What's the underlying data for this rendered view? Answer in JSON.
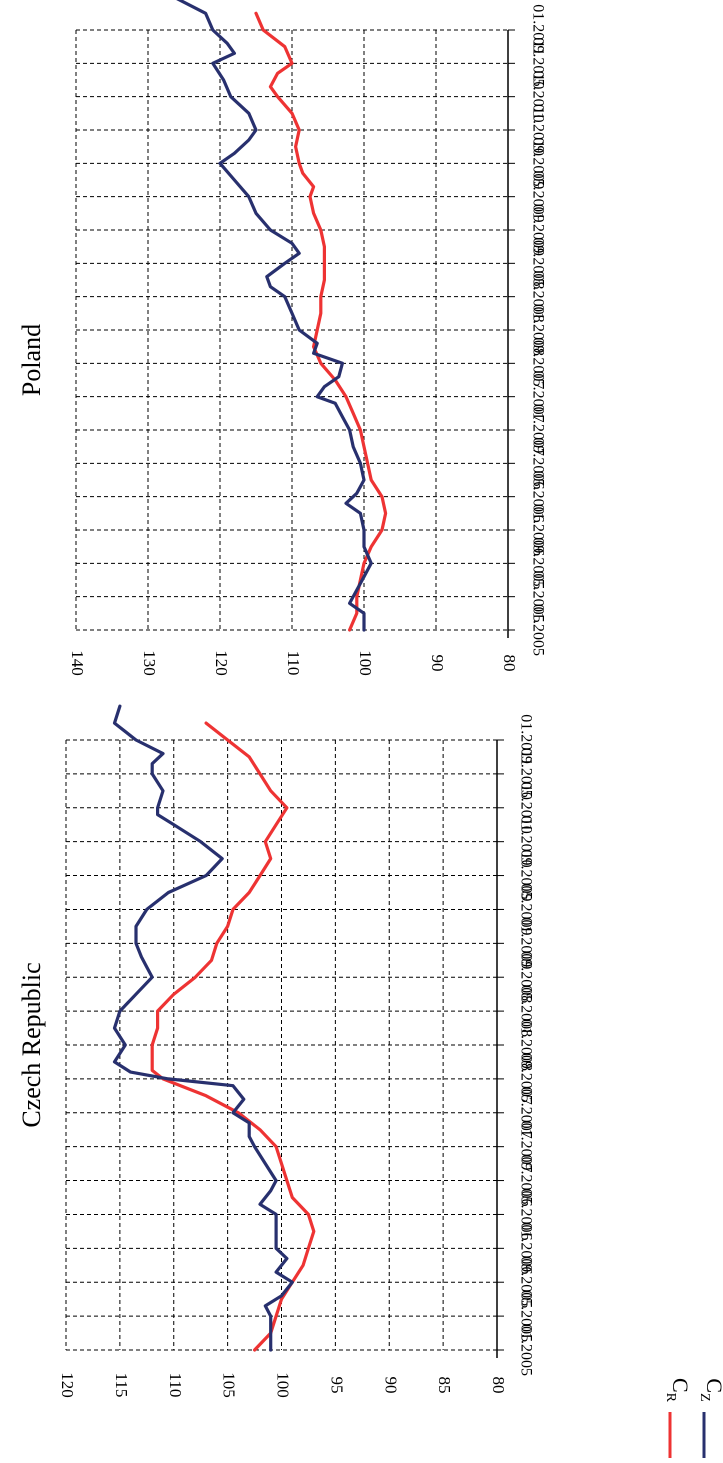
{
  "colors": {
    "cr": "#ee3333",
    "cz": "#28306e",
    "grid": "#000000"
  },
  "legend": [
    {
      "label": "C",
      "sub": "R",
      "color": "#ee3333"
    },
    {
      "label": "C",
      "sub": "Z",
      "color": "#28306e"
    }
  ],
  "chart_data": [
    {
      "type": "line",
      "title": "Czech Republic",
      "orientation": "rotated-90-clockwise",
      "x": [
        "01.2005",
        "05.2005",
        "09.2005",
        "01.2006",
        "05.2006",
        "09.2006",
        "01.2007",
        "05.2007",
        "09.2007",
        "01.2008",
        "05.2008",
        "09.2008",
        "01.2009",
        "05.2009",
        "09.2009",
        "01.2010",
        "05.2010",
        "09.2010",
        "01.2011"
      ],
      "ylim": [
        80,
        120
      ],
      "yticks": [
        80,
        85,
        90,
        95,
        100,
        105,
        110,
        115,
        120
      ],
      "grid": true,
      "series": [
        {
          "key": "cr",
          "name": "C_R",
          "values": [
            [
              0,
              102.5
            ],
            [
              0.5,
              101.0
            ],
            [
              1,
              100.5
            ],
            [
              1.5,
              100.0
            ],
            [
              2,
              99.0
            ],
            [
              2.5,
              98.0
            ],
            [
              3,
              97.5
            ],
            [
              3.5,
              97.0
            ],
            [
              4,
              97.5
            ],
            [
              4.5,
              99.0
            ],
            [
              5,
              99.5
            ],
            [
              5.5,
              100.0
            ],
            [
              6,
              100.5
            ],
            [
              6.5,
              102.0
            ],
            [
              7,
              104.0
            ],
            [
              7.5,
              107.0
            ],
            [
              8,
              111.0
            ],
            [
              8.25,
              112.0
            ],
            [
              8.5,
              112.0
            ],
            [
              9,
              112.0
            ],
            [
              9.5,
              111.5
            ],
            [
              10,
              111.5
            ],
            [
              10.5,
              110.0
            ],
            [
              11,
              108.0
            ],
            [
              11.5,
              106.5
            ],
            [
              12,
              106.0
            ],
            [
              12.5,
              105.0
            ],
            [
              13,
              104.5
            ],
            [
              13.5,
              103.0
            ],
            [
              14,
              102.0
            ],
            [
              14.5,
              101.0
            ],
            [
              15,
              101.5
            ],
            [
              15.5,
              100.5
            ],
            [
              16,
              99.5
            ],
            [
              16.5,
              101.0
            ],
            [
              17,
              102.0
            ],
            [
              17.5,
              103.0
            ],
            [
              18,
              105.0
            ],
            [
              18.5,
              107.0
            ]
          ]
        },
        {
          "key": "cz",
          "name": "C_Z",
          "values": [
            [
              0,
              101.0
            ],
            [
              0.5,
              101.0
            ],
            [
              1,
              101.0
            ],
            [
              1.3,
              101.5
            ],
            [
              1.6,
              100.0
            ],
            [
              2,
              99.0
            ],
            [
              2.3,
              100.5
            ],
            [
              2.7,
              99.5
            ],
            [
              3,
              100.5
            ],
            [
              3.5,
              100.5
            ],
            [
              4,
              100.5
            ],
            [
              4.3,
              102.0
            ],
            [
              4.7,
              101.0
            ],
            [
              5,
              100.5
            ],
            [
              5.5,
              101.5
            ],
            [
              6,
              102.5
            ],
            [
              6.3,
              103.0
            ],
            [
              6.7,
              103.0
            ],
            [
              7,
              104.5
            ],
            [
              7.4,
              103.5
            ],
            [
              7.8,
              104.5
            ],
            [
              8,
              110.5
            ],
            [
              8.2,
              114.0
            ],
            [
              8.5,
              115.5
            ],
            [
              9,
              114.5
            ],
            [
              9.5,
              115.5
            ],
            [
              10,
              115.0
            ],
            [
              10.5,
              113.5
            ],
            [
              11,
              112.0
            ],
            [
              11.3,
              112.5
            ],
            [
              11.6,
              113.0
            ],
            [
              12,
              113.5
            ],
            [
              12.5,
              113.5
            ],
            [
              13,
              112.5
            ],
            [
              13.5,
              110.5
            ],
            [
              14,
              107.0
            ],
            [
              14.5,
              105.5
            ],
            [
              15,
              107.5
            ],
            [
              15.5,
              110.0
            ],
            [
              15.8,
              111.5
            ],
            [
              16,
              111.5
            ],
            [
              16.5,
              111.0
            ],
            [
              17,
              112.0
            ],
            [
              17.3,
              112.0
            ],
            [
              17.6,
              111.0
            ],
            [
              18,
              113.5
            ],
            [
              18.5,
              115.5
            ],
            [
              19,
              115.0
            ]
          ]
        }
      ]
    },
    {
      "type": "line",
      "title": "Poland",
      "orientation": "rotated-90-clockwise",
      "x": [
        "01.2005",
        "05.2005",
        "09.2005",
        "01.2006",
        "05.2006",
        "09.2006",
        "01.2007",
        "05.2007",
        "09.2007",
        "01.2008",
        "05.2008",
        "09.2008",
        "01.2009",
        "05.2009",
        "09.2009",
        "01.2010",
        "05.2010",
        "09.2010",
        "01.2011"
      ],
      "ylim": [
        80,
        140
      ],
      "yticks": [
        80,
        90,
        100,
        110,
        120,
        130,
        140
      ],
      "grid": true,
      "series": [
        {
          "key": "cr",
          "name": "C_R",
          "values": [
            [
              0,
              102.0
            ],
            [
              0.5,
              101.0
            ],
            [
              1,
              101.0
            ],
            [
              1.5,
              100.5
            ],
            [
              2,
              100.0
            ],
            [
              2.5,
              99.0
            ],
            [
              3,
              97.5
            ],
            [
              3.5,
              97.0
            ],
            [
              4,
              97.5
            ],
            [
              4.5,
              99.0
            ],
            [
              5,
              99.5
            ],
            [
              5.5,
              100.0
            ],
            [
              6,
              100.5
            ],
            [
              6.5,
              101.5
            ],
            [
              7,
              102.5
            ],
            [
              7.5,
              104.0
            ],
            [
              8,
              106.0
            ],
            [
              8.5,
              107.0
            ],
            [
              9,
              106.5
            ],
            [
              9.5,
              106.0
            ],
            [
              10,
              106.0
            ],
            [
              10.5,
              105.5
            ],
            [
              11,
              105.5
            ],
            [
              11.5,
              105.5
            ],
            [
              12,
              106.0
            ],
            [
              12.5,
              107.0
            ],
            [
              13,
              107.5
            ],
            [
              13.3,
              107.0
            ],
            [
              13.7,
              108.5
            ],
            [
              14,
              109.0
            ],
            [
              14.5,
              109.5
            ],
            [
              15,
              109.0
            ],
            [
              15.5,
              110.0
            ],
            [
              16,
              112.0
            ],
            [
              16.3,
              113.0
            ],
            [
              16.7,
              112.0
            ],
            [
              17,
              110.0
            ],
            [
              17.5,
              111.0
            ],
            [
              18,
              114.0
            ],
            [
              18.5,
              115.0
            ]
          ]
        },
        {
          "key": "cz",
          "name": "C_Z",
          "values": [
            [
              0,
              100.0
            ],
            [
              0.5,
              100.0
            ],
            [
              0.8,
              102.0
            ],
            [
              1.2,
              101.0
            ],
            [
              1.6,
              100.0
            ],
            [
              2,
              99.0
            ],
            [
              2.5,
              100.0
            ],
            [
              3,
              100.0
            ],
            [
              3.5,
              100.5
            ],
            [
              3.8,
              102.5
            ],
            [
              4.1,
              101.0
            ],
            [
              4.5,
              100.0
            ],
            [
              5,
              100.5
            ],
            [
              5.5,
              101.5
            ],
            [
              6,
              102.0
            ],
            [
              6.4,
              103.0
            ],
            [
              6.8,
              104.0
            ],
            [
              7,
              106.5
            ],
            [
              7.3,
              105.5
            ],
            [
              7.6,
              103.5
            ],
            [
              8,
              103.0
            ],
            [
              8.3,
              107.0
            ],
            [
              8.6,
              106.5
            ],
            [
              9,
              109.0
            ],
            [
              9.5,
              110.0
            ],
            [
              10,
              111.0
            ],
            [
              10.3,
              113.0
            ],
            [
              10.6,
              113.5
            ],
            [
              11,
              111.0
            ],
            [
              11.3,
              109.0
            ],
            [
              11.6,
              110.0
            ],
            [
              12,
              113.0
            ],
            [
              12.5,
              115.0
            ],
            [
              13,
              116.0
            ],
            [
              13.5,
              118.0
            ],
            [
              14,
              120.0
            ],
            [
              14.3,
              118.0
            ],
            [
              14.7,
              116.0
            ],
            [
              15,
              115.0
            ],
            [
              15.5,
              116.0
            ],
            [
              16,
              118.5
            ],
            [
              16.5,
              119.5
            ],
            [
              17,
              121.0
            ],
            [
              17.3,
              118.0
            ],
            [
              17.6,
              119.0
            ],
            [
              18,
              121.0
            ],
            [
              18.5,
              122.0
            ],
            [
              19,
              126.5
            ]
          ]
        }
      ]
    }
  ]
}
